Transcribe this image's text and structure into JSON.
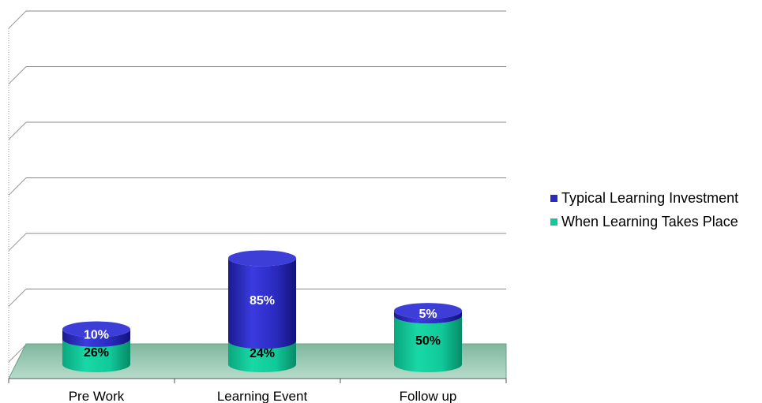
{
  "chart_data": {
    "type": "bar",
    "stacked": true,
    "style": "3d-cylinder",
    "categories": [
      "Pre Work",
      "Learning Event",
      "Follow up"
    ],
    "series": [
      {
        "name": "When Learning Takes Place",
        "values": [
          26,
          24,
          50
        ],
        "labels": [
          "26%",
          "24%",
          "50%"
        ],
        "color": "#10c99a"
      },
      {
        "name": "Typical Learning Investment",
        "values": [
          10,
          85,
          5
        ],
        "labels": [
          "10%",
          "85%",
          "5%"
        ],
        "color": "#2a2ac0"
      }
    ],
    "ylim": [
      0,
      120
    ],
    "grid": true,
    "legend": {
      "position": "right",
      "order": [
        "Typical Learning Investment",
        "When Learning Takes Place"
      ]
    },
    "floor_color": "#9fc8b4"
  }
}
